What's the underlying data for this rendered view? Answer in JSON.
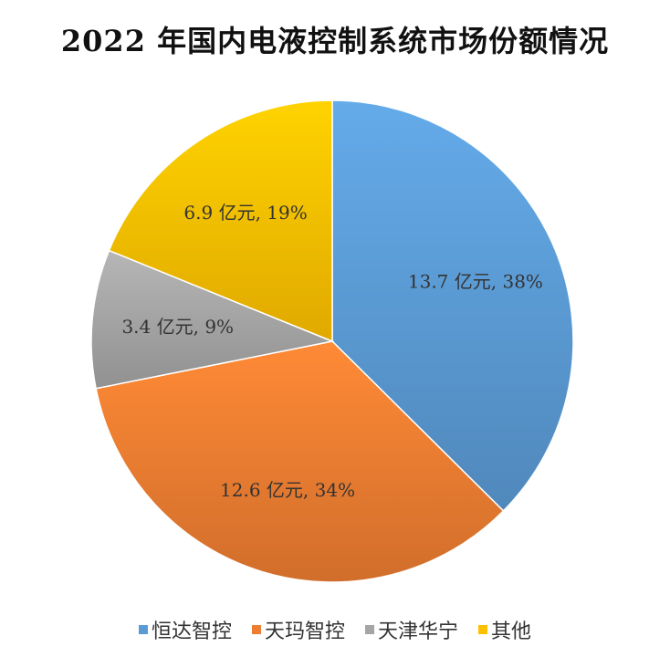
{
  "title": "2022 年国内电液控制系统市场份额情况",
  "chart_data": {
    "type": "pie",
    "title": "2022 年国内电液控制系统市场份额情况",
    "start_angle_deg": 0,
    "direction": "clockwise",
    "legend_position": "bottom",
    "slices": [
      {
        "name": "恒达智控",
        "value": 13.7,
        "percent": 38,
        "label": "13.7 亿元, 38%",
        "color": "#5B9BD5"
      },
      {
        "name": "天玛智控",
        "value": 12.6,
        "percent": 34,
        "label": "12.6 亿元, 34%",
        "color": "#ED7D31"
      },
      {
        "name": "天津华宁",
        "value": 3.4,
        "percent": 9,
        "label": "3.4 亿元, 9%",
        "color": "#A5A5A5"
      },
      {
        "name": "其他",
        "value": 6.9,
        "percent": 19,
        "label": "6.9 亿元, 19%",
        "color": "#FFC000"
      }
    ]
  }
}
